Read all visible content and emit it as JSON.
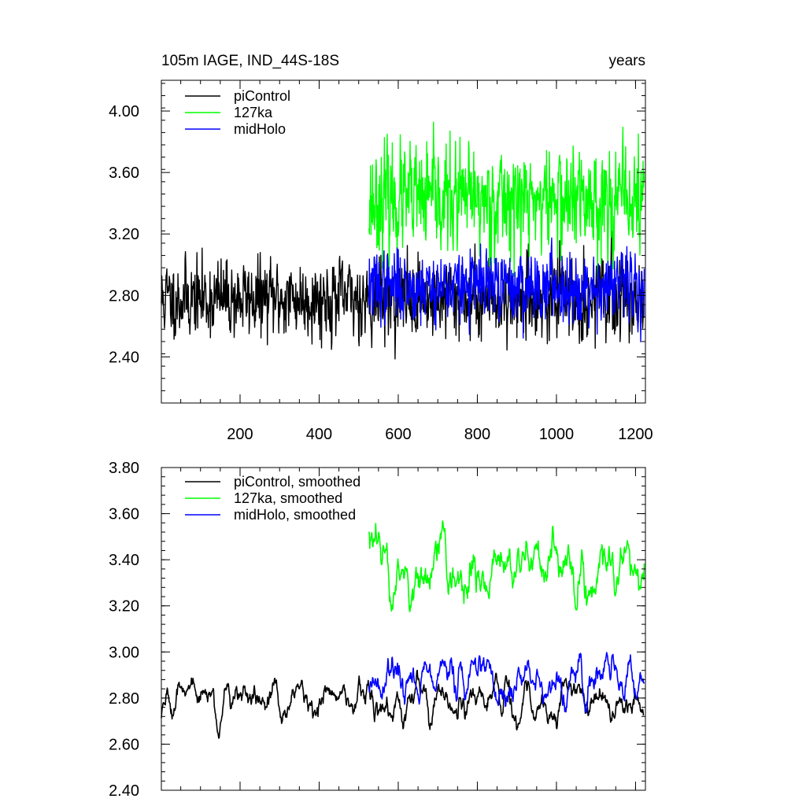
{
  "chart_data": [
    {
      "type": "line",
      "title": "105m IAGE, IND_44S-18S",
      "units": "years",
      "xlabel": "",
      "ylabel": "",
      "xlim": [
        1,
        1225
      ],
      "ylim": [
        2.1,
        4.2
      ],
      "xticks": [
        200,
        400,
        600,
        800,
        1000,
        1200
      ],
      "xtick_labels": [
        "200",
        "400",
        "600",
        "800",
        "1000",
        "1200"
      ],
      "yticks": [
        2.4,
        2.8,
        3.2,
        3.6,
        4.0
      ],
      "ytick_labels": [
        "2.40",
        "2.80",
        "3.20",
        "3.60",
        "4.00"
      ],
      "legend_position": "top-left",
      "series": [
        {
          "name": "piControl",
          "color": "#000000",
          "x_start": 1,
          "x_end": 1220,
          "mean": 2.78,
          "spread": 0.22,
          "seed": 11
        },
        {
          "name": "127ka",
          "color": "#00ff00",
          "x_start": 526,
          "x_end": 1222,
          "mean": 3.42,
          "spread": 0.3,
          "seed": 23
        },
        {
          "name": "midHolo",
          "color": "#0000ff",
          "x_start": 526,
          "x_end": 1222,
          "mean": 2.86,
          "spread": 0.2,
          "seed": 37
        }
      ]
    },
    {
      "type": "line",
      "title": "",
      "xlabel": "",
      "ylabel": "",
      "xlim": [
        1,
        1225
      ],
      "ylim": [
        2.4,
        3.8
      ],
      "xticks": [
        200,
        400,
        600,
        800,
        1000,
        1200
      ],
      "xtick_labels": [],
      "yticks": [
        2.4,
        2.6,
        2.8,
        3.0,
        3.2,
        3.4,
        3.6,
        3.8
      ],
      "ytick_labels": [
        "2.40",
        "2.60",
        "2.80",
        "3.00",
        "3.20",
        "3.40",
        "3.60",
        "3.80"
      ],
      "legend_position": "top-left",
      "series": [
        {
          "name": "piControl, smoothed",
          "color": "#000000",
          "x_start": 1,
          "x_end": 1220,
          "mean": 2.79,
          "spread": 0.09,
          "seed": 51
        },
        {
          "name": "127ka, smoothed",
          "color": "#00ff00",
          "x_start": 526,
          "x_end": 1222,
          "mean": 3.36,
          "spread": 0.14,
          "seed": 63
        },
        {
          "name": "midHolo, smoothed",
          "color": "#0000ff",
          "x_start": 526,
          "x_end": 1222,
          "mean": 2.88,
          "spread": 0.1,
          "seed": 77
        }
      ]
    }
  ]
}
